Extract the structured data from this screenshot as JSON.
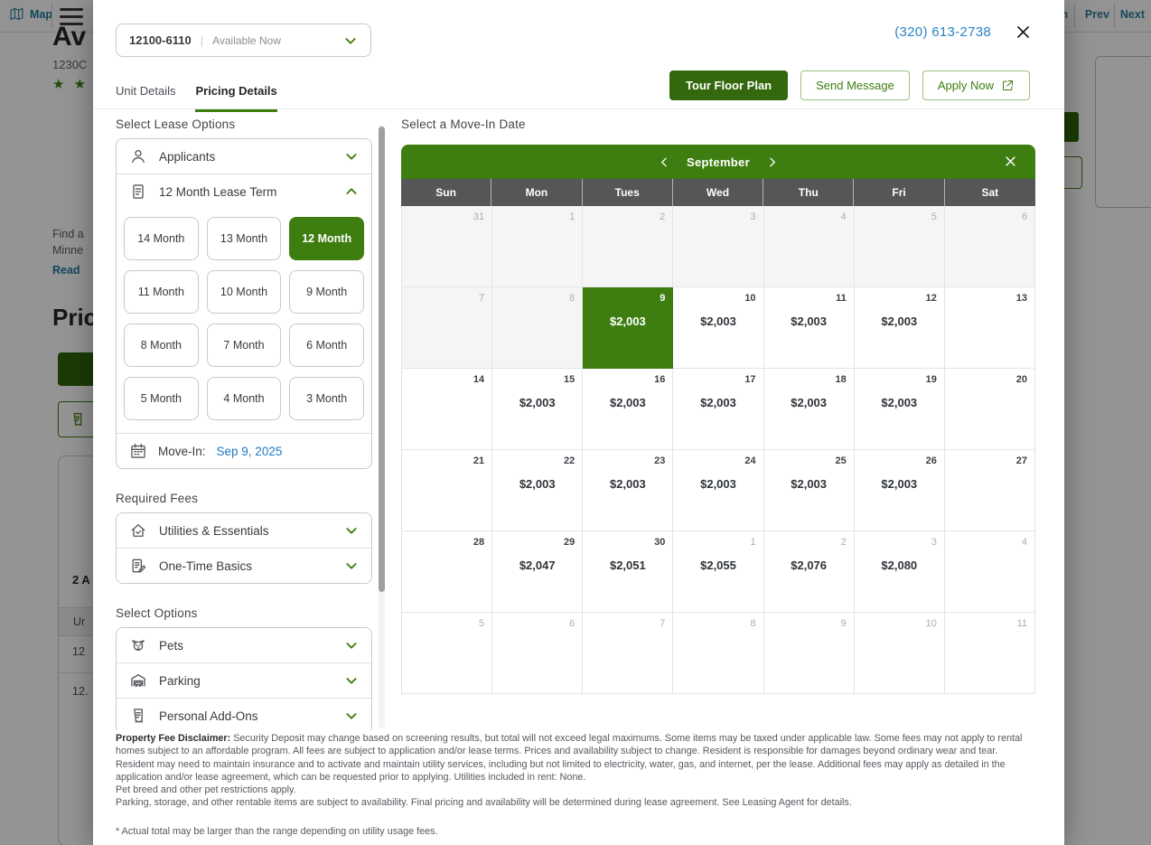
{
  "background": {
    "header": {
      "map": "Map",
      "nav_partial": "n",
      "prev": "Prev",
      "next": "Next"
    },
    "listing": {
      "title_partial": "Av",
      "address_partial": "1230C",
      "stars": "★ ★ ★",
      "desc_line1": "Find a",
      "desc_line2": "Minne",
      "read_more_partial": "Read",
      "pricing_heading_partial": "Pric",
      "availability_partial": "2 A",
      "table_unit_partial": "Ur",
      "table_row1_partial": "12",
      "table_row2_partial": "12."
    }
  },
  "modal": {
    "unit_selector": {
      "unit": "12100-6110",
      "separator": "|",
      "status": "Available Now"
    },
    "phone": "(320) 613-2738",
    "tabs": {
      "unit_details": "Unit Details",
      "pricing_details": "Pricing Details"
    },
    "actions": {
      "tour": "Tour Floor Plan",
      "message": "Send Message",
      "apply": "Apply Now"
    },
    "lease": {
      "heading": "Select Lease Options",
      "applicants_label": "Applicants",
      "lease_term_label": "12 Month Lease Term",
      "terms": [
        "14 Month",
        "13 Month",
        "12 Month",
        "11 Month",
        "10 Month",
        "9 Month",
        "8 Month",
        "7 Month",
        "6 Month",
        "5 Month",
        "4 Month",
        "3 Month"
      ],
      "selected_term": "12 Month",
      "move_in_label": "Move-In:",
      "move_in_date": "Sep 9, 2025"
    },
    "required_fees": {
      "heading": "Required Fees",
      "items": [
        {
          "label": "Utilities & Essentials",
          "icon": "house-utilities-icon"
        },
        {
          "label": "One-Time Basics",
          "icon": "document-pencil-icon"
        }
      ]
    },
    "select_options": {
      "heading": "Select Options",
      "items": [
        {
          "label": "Pets",
          "icon": "dog-icon"
        },
        {
          "label": "Parking",
          "icon": "garage-car-icon"
        },
        {
          "label": "Personal Add-Ons",
          "icon": "receipt-icon"
        }
      ]
    },
    "calendar": {
      "heading": "Select a Move-In Date",
      "month": "September",
      "day_headers": [
        "Sun",
        "Mon",
        "Tues",
        "Wed",
        "Thu",
        "Fri",
        "Sat"
      ],
      "weeks": [
        [
          {
            "d": "31",
            "s": "disabled"
          },
          {
            "d": "1",
            "s": "disabled"
          },
          {
            "d": "2",
            "s": "disabled"
          },
          {
            "d": "3",
            "s": "disabled"
          },
          {
            "d": "4",
            "s": "disabled"
          },
          {
            "d": "5",
            "s": "disabled"
          },
          {
            "d": "6",
            "s": "disabled"
          }
        ],
        [
          {
            "d": "7",
            "s": "disabled"
          },
          {
            "d": "8",
            "s": "disabled"
          },
          {
            "d": "9",
            "s": "selected",
            "price": "$2,003"
          },
          {
            "d": "10",
            "s": "open",
            "price": "$2,003"
          },
          {
            "d": "11",
            "s": "open",
            "price": "$2,003"
          },
          {
            "d": "12",
            "s": "open",
            "price": "$2,003"
          },
          {
            "d": "13",
            "s": "open"
          }
        ],
        [
          {
            "d": "14",
            "s": "open"
          },
          {
            "d": "15",
            "s": "open",
            "price": "$2,003"
          },
          {
            "d": "16",
            "s": "open",
            "price": "$2,003"
          },
          {
            "d": "17",
            "s": "open",
            "price": "$2,003"
          },
          {
            "d": "18",
            "s": "open",
            "price": "$2,003"
          },
          {
            "d": "19",
            "s": "open",
            "price": "$2,003"
          },
          {
            "d": "20",
            "s": "open"
          }
        ],
        [
          {
            "d": "21",
            "s": "open"
          },
          {
            "d": "22",
            "s": "open",
            "price": "$2,003"
          },
          {
            "d": "23",
            "s": "open",
            "price": "$2,003"
          },
          {
            "d": "24",
            "s": "open",
            "price": "$2,003"
          },
          {
            "d": "25",
            "s": "open",
            "price": "$2,003"
          },
          {
            "d": "26",
            "s": "open",
            "price": "$2,003"
          },
          {
            "d": "27",
            "s": "open"
          }
        ],
        [
          {
            "d": "28",
            "s": "open"
          },
          {
            "d": "29",
            "s": "open",
            "price": "$2,047"
          },
          {
            "d": "30",
            "s": "open",
            "price": "$2,051"
          },
          {
            "d": "1",
            "s": "muted",
            "price": "$2,055"
          },
          {
            "d": "2",
            "s": "muted",
            "price": "$2,076"
          },
          {
            "d": "3",
            "s": "muted",
            "price": "$2,080"
          },
          {
            "d": "4",
            "s": "muted"
          }
        ],
        [
          {
            "d": "5",
            "s": "muted"
          },
          {
            "d": "6",
            "s": "muted"
          },
          {
            "d": "7",
            "s": "muted"
          },
          {
            "d": "8",
            "s": "muted"
          },
          {
            "d": "9",
            "s": "muted"
          },
          {
            "d": "10",
            "s": "muted"
          },
          {
            "d": "11",
            "s": "muted"
          }
        ]
      ]
    },
    "disclaimer": {
      "title": "Property Fee Disclaimer:",
      "body": " Security Deposit may change based on screening results, but total will not exceed legal maximums. Some items may be taxed under applicable law. Some fees may not apply to rental homes subject to an affordable program. All fees are subject to application and/or lease terms. Prices and availability subject to change. Resident is responsible for damages beyond ordinary wear and tear. Resident may need to maintain insurance and to activate and maintain utility services, including but not limited to electricity, water, gas, and internet, per the lease. Additional fees may apply as detailed in the application and/or lease agreement, which can be requested prior to applying. Utilities included in rent: None.",
      "line2": "Pet breed and other pet restrictions apply.",
      "line3": "Parking, storage, and other rentable items are subject to availability. Final pricing and availability will be determined during lease agreement. See Leasing Agent for details.",
      "footnote": "* Actual total may be larger than the range depending on utility usage fees."
    }
  },
  "colors": {
    "accent_green": "#3E7E10",
    "button_dark_green": "#33690C",
    "phone_blue": "#2A84C4",
    "date_blue": "#1D79C4",
    "teal_link": "#1F7A9C",
    "day_header_gray": "#565659"
  }
}
